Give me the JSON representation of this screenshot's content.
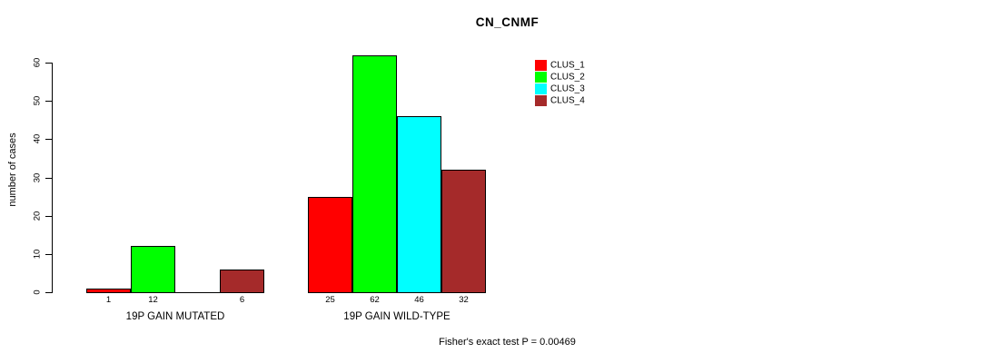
{
  "chart_data": {
    "type": "bar",
    "title": "CN_CNMF",
    "ylabel": "number of cases",
    "xlabel": "",
    "yticks": [
      0,
      10,
      20,
      30,
      40,
      50,
      60
    ],
    "ylim": [
      0,
      62
    ],
    "grid": false,
    "legend_position": "top-right-inside",
    "series": [
      {
        "name": "CLUS_1",
        "color": "#ff0000"
      },
      {
        "name": "CLUS_2",
        "color": "#00ff00"
      },
      {
        "name": "CLUS_3",
        "color": "#00ffff"
      },
      {
        "name": "CLUS_4",
        "color": "#a52a2a"
      }
    ],
    "groups": [
      {
        "label": "19P GAIN MUTATED",
        "values": [
          1,
          12,
          0,
          6
        ],
        "bar_labels": [
          "1",
          "12",
          "",
          "6"
        ]
      },
      {
        "label": "19P GAIN WILD-TYPE",
        "values": [
          25,
          62,
          46,
          32
        ],
        "bar_labels": [
          "25",
          "62",
          "46",
          "32"
        ]
      }
    ],
    "annotation": "Fisher's exact test P = 0.00469"
  }
}
